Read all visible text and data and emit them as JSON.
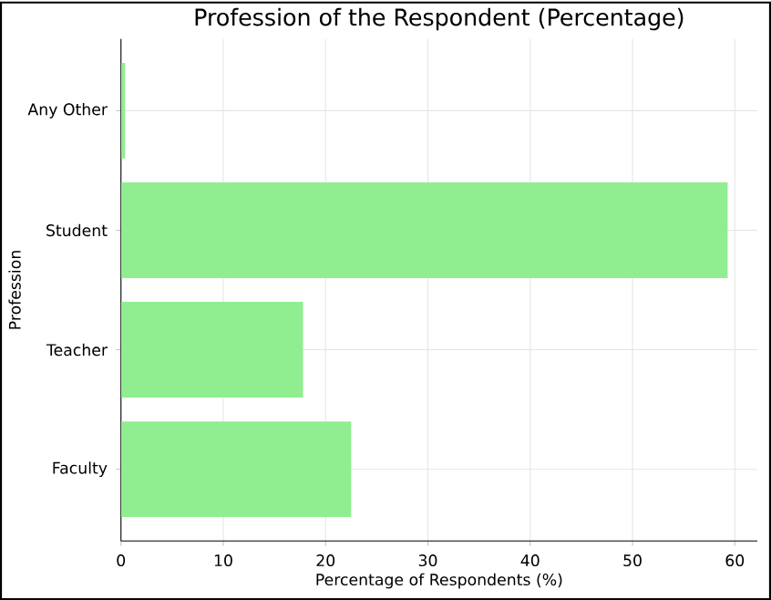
{
  "chart_data": {
    "type": "bar",
    "orientation": "horizontal",
    "title": "Profession of the Respondent (Percentage)",
    "xlabel": "Percentage of Respondents (%)",
    "ylabel": "Profession",
    "categories": [
      "Any Other",
      "Student",
      "Teacher",
      "Faculty"
    ],
    "values": [
      0.4,
      59.3,
      17.8,
      22.5
    ],
    "color": "#90ee90",
    "xlim": [
      0,
      62.2
    ],
    "xticks": [
      0,
      10,
      20,
      30,
      40,
      50,
      60
    ],
    "grid": true
  }
}
